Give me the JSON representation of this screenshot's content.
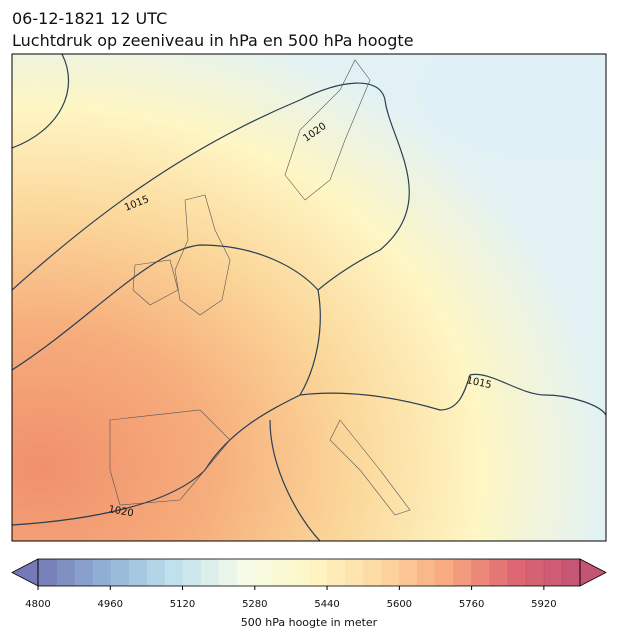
{
  "header": {
    "title": "06-12-1821 12 UTC",
    "subtitle": "Luchtdruk op zeeniveau in hPa en 500 hPa hoogte"
  },
  "map": {
    "contour_labels": [
      "1015",
      "1020",
      "1015",
      "1020"
    ]
  },
  "colorbar": {
    "label": "500 hPa hoogte in meter",
    "lim": [
      4800,
      6000
    ],
    "step": 40,
    "ticks": [
      4800,
      4960,
      5120,
      5280,
      5440,
      5600,
      5760,
      5920
    ],
    "colors": [
      "#5e62aa",
      "#7fa4cf",
      "#b5dbeb",
      "#f3fae6",
      "#fff6bd",
      "#fdd493",
      "#f89c6c",
      "#d9505a",
      "#b8365c"
    ]
  }
}
